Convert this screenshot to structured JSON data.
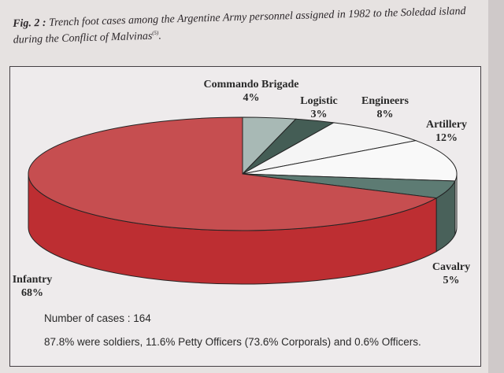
{
  "caption": {
    "fig": "Fig. 2 :",
    "line1": "Trench foot cases among the Argentine Army personnel assigned in 1982 to the Soledad island",
    "line2": "during the Conflict of Malvinas",
    "ref": "(5)",
    "end": "."
  },
  "notes": {
    "cases": "Number of cases : 164",
    "composition": "87.8% were soldiers, 11.6% Petty Officers (73.6% Corporals) and 0.6% Officers."
  },
  "chart_data": {
    "type": "pie",
    "style": "3d",
    "title": "",
    "slices": [
      {
        "label": "Commando Brigade",
        "value": 4,
        "value_label": "4%",
        "color": "#a9bcb7",
        "side": "#7f928d"
      },
      {
        "label": "Logistic",
        "value": 3,
        "value_label": "3%",
        "color": "#3f5a51",
        "side": "#2c4039"
      },
      {
        "label": "Engineers",
        "value": 8,
        "value_label": "8%",
        "color": "#fbfbfb",
        "side": "#dcdcdc"
      },
      {
        "label": "Artillery",
        "value": 12,
        "value_label": "12%",
        "color": "#ffffff",
        "side": "#e6e6e6"
      },
      {
        "label": "Cavalry",
        "value": 5,
        "value_label": "5%",
        "color": "#5a7a71",
        "side": "#445e57"
      },
      {
        "label": "Infantry",
        "value": 68,
        "value_label": "68%",
        "color": "#c94a4c",
        "side": "#c0282c"
      }
    ],
    "start_angle_deg": -90,
    "direction": "clockwise"
  }
}
